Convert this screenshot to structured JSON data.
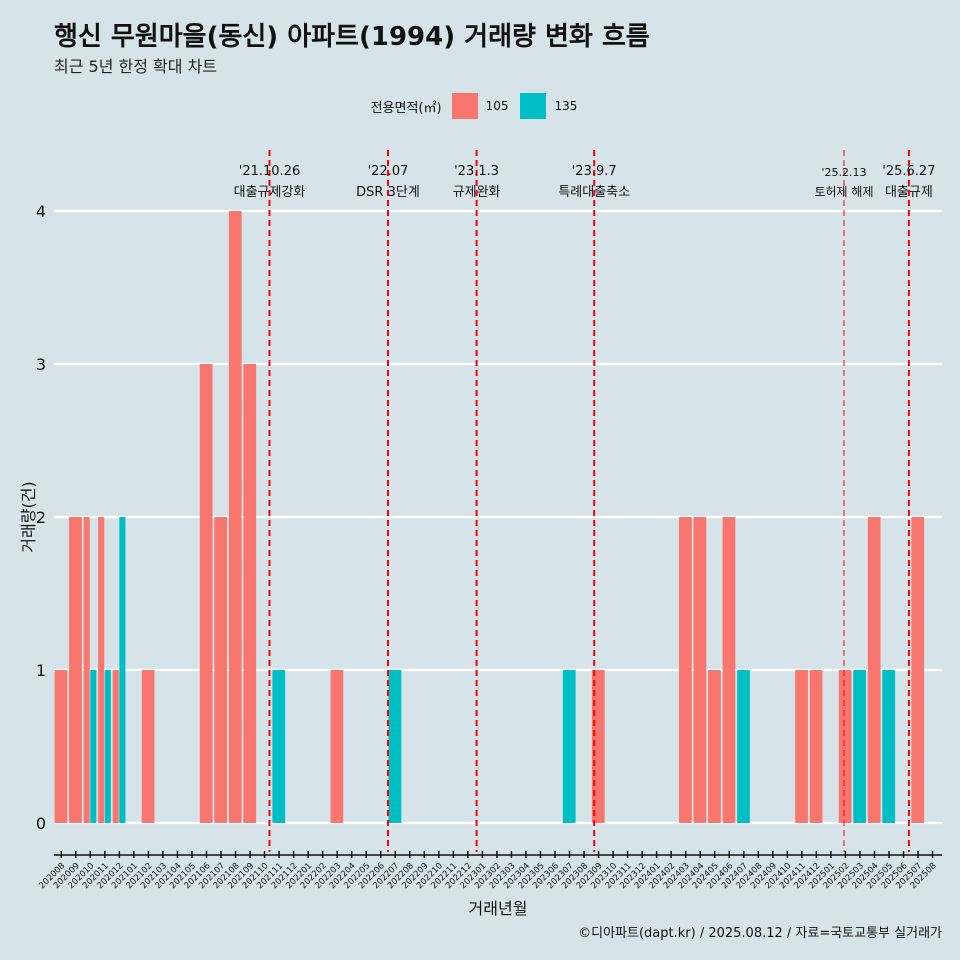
{
  "title": "행신 무원마을(동신) 아파트(1994) 거래량 변화 흐름",
  "subtitle": "최근 5년 한정 확대 차트",
  "caption": "©디아파트(dapt.kr) / 2025.08.12 / 자료=국토교통부 실거래가",
  "colors": {
    "105": "#f8766d",
    "135": "#00bfc4",
    "bg": "#d6e4ea",
    "event": "#ff0000"
  },
  "legend": {
    "title": "전용면적(㎡)",
    "items": [
      {
        "label": "105",
        "color": "#f8766d"
      },
      {
        "label": "135",
        "color": "#00bfc4"
      }
    ]
  },
  "chart_data": {
    "type": "bar",
    "title": "행신 무원마을(동신) 아파트(1994) 거래량 변화 흐름",
    "subtitle": "최근 5년 한정 확대 차트",
    "xlabel": "거래년월",
    "ylabel": "거래량(건)",
    "ylim": [
      0,
      4.4
    ],
    "yticks": [
      0,
      1,
      2,
      3,
      4
    ],
    "grid": true,
    "legend_position": "top",
    "categories": [
      "202008",
      "202009",
      "202010",
      "202011",
      "202012",
      "202101",
      "202102",
      "202103",
      "202104",
      "202105",
      "202106",
      "202107",
      "202108",
      "202109",
      "202110",
      "202111",
      "202112",
      "202201",
      "202202",
      "202203",
      "202204",
      "202205",
      "202206",
      "202207",
      "202208",
      "202209",
      "202210",
      "202211",
      "202212",
      "202301",
      "202302",
      "202303",
      "202304",
      "202305",
      "202306",
      "202307",
      "202308",
      "202309",
      "202310",
      "202311",
      "202312",
      "202401",
      "202402",
      "202403",
      "202404",
      "202405",
      "202406",
      "202407",
      "202408",
      "202409",
      "202410",
      "202411",
      "202412",
      "202501",
      "202502",
      "202503",
      "202504",
      "202505",
      "202506",
      "202507",
      "202508"
    ],
    "series": [
      {
        "name": "105",
        "color": "#f8766d",
        "values": [
          1,
          2,
          2,
          2,
          1,
          0,
          1,
          0,
          0,
          0,
          3,
          2,
          4,
          3,
          0,
          0,
          0,
          0,
          0,
          1,
          0,
          0,
          0,
          0,
          0,
          0,
          0,
          0,
          0,
          0,
          0,
          0,
          0,
          0,
          0,
          0,
          0,
          1,
          0,
          0,
          0,
          0,
          0,
          2,
          2,
          1,
          2,
          0,
          0,
          0,
          0,
          1,
          1,
          0,
          1,
          0,
          2,
          0,
          0,
          2,
          0
        ]
      },
      {
        "name": "135",
        "color": "#00bfc4",
        "values": [
          0,
          0,
          1,
          1,
          2,
          0,
          0,
          0,
          0,
          0,
          0,
          0,
          0,
          0,
          0,
          1,
          0,
          0,
          0,
          0,
          0,
          0,
          0,
          1,
          0,
          0,
          0,
          0,
          0,
          0,
          0,
          0,
          0,
          0,
          0,
          1,
          0,
          0,
          0,
          0,
          0,
          0,
          0,
          0,
          0,
          0,
          0,
          1,
          0,
          0,
          0,
          0,
          0,
          0,
          0,
          1,
          0,
          1,
          0,
          0,
          0
        ]
      }
    ],
    "events": [
      {
        "date": "'21.10.26",
        "label": "대출규제강화",
        "month": "202110",
        "frac": 0.84,
        "dashed_width": 2
      },
      {
        "date": "'22.07",
        "label": "DSR 3단계",
        "month": "202207",
        "frac": 0.0,
        "dashed_width": 2
      },
      {
        "date": "'23.1.3",
        "label": "규제완화",
        "month": "202301",
        "frac": 0.1,
        "dashed_width": 2
      },
      {
        "date": "'23.9.7",
        "label": "특례대출축소",
        "month": "202309",
        "frac": 0.2,
        "dashed_width": 2
      },
      {
        "date": "'25.2.13",
        "label": "토허제 해제",
        "month": "202502",
        "frac": 0.4,
        "dashed_width": 1
      },
      {
        "date": "'25.6.27",
        "label": "대출규제",
        "month": "202506",
        "frac": 0.87,
        "dashed_width": 2
      }
    ]
  }
}
